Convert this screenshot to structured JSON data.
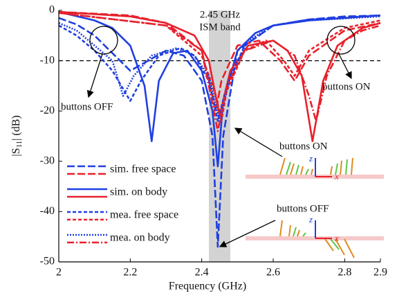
{
  "chart_data": {
    "type": "line",
    "xlabel": "Frequency (GHz)",
    "ylabel": {
      "pre": "|S",
      "sub": "11",
      "post": "| (dB)"
    },
    "xlim": [
      2,
      2.9
    ],
    "ylim": [
      -50,
      0
    ],
    "xticks": [
      2,
      2.2,
      2.4,
      2.6,
      2.8,
      2.9
    ],
    "yticks": [
      -50,
      -40,
      -30,
      -20,
      -10,
      0
    ],
    "hline": -10,
    "band": [
      2.42,
      2.48
    ],
    "annotations": [
      "2.45 GHz",
      "ISM band",
      "buttons OFF",
      "buttons ON",
      "buttons ON",
      "buttons OFF",
      "z",
      "x",
      "z",
      "x"
    ],
    "series": [
      {
        "name": "sim. free space",
        "color": "#1f3fe0",
        "dash": "11 4",
        "x": [
          2,
          2.05,
          2.1,
          2.15,
          2.2,
          2.25,
          2.3,
          2.35,
          2.4,
          2.43,
          2.445,
          2.46,
          2.5,
          2.6,
          2.7,
          2.8,
          2.9
        ],
        "values": [
          -1.5,
          -2.8,
          -5,
          -8.5,
          -12,
          -10,
          -8,
          -9,
          -14,
          -25,
          -47,
          -25,
          -8,
          -3,
          -1.8,
          -1.2,
          -1
        ]
      },
      {
        "color": "#e8202a",
        "dash": "11 4",
        "x": [
          2,
          2.2,
          2.3,
          2.4,
          2.44,
          2.455,
          2.5,
          2.56,
          2.62,
          2.66,
          2.7,
          2.8,
          2.9
        ],
        "values": [
          -0.3,
          -1,
          -2.5,
          -8,
          -20,
          -14,
          -7,
          -6,
          -10,
          -14,
          -9,
          -4,
          -2.5
        ]
      },
      {
        "name": "sim. on body",
        "color": "#1f3fe0",
        "dash": "none",
        "x": [
          2,
          2.1,
          2.15,
          2.2,
          2.24,
          2.26,
          2.28,
          2.32,
          2.36,
          2.4,
          2.43,
          2.445,
          2.46,
          2.5,
          2.55,
          2.6,
          2.7,
          2.8,
          2.9
        ],
        "values": [
          -0.3,
          -2,
          -3.5,
          -7,
          -15,
          -26,
          -14,
          -8.5,
          -8,
          -12,
          -20,
          -31,
          -18,
          -8,
          -4.5,
          -3,
          -2,
          -1.5,
          -1
        ]
      },
      {
        "color": "#e8202a",
        "dash": "none",
        "x": [
          2,
          2.2,
          2.3,
          2.38,
          2.42,
          2.45,
          2.48,
          2.53,
          2.6,
          2.64,
          2.68,
          2.71,
          2.74,
          2.78,
          2.85,
          2.9
        ],
        "values": [
          -0.3,
          -1.2,
          -2.5,
          -5,
          -10,
          -21,
          -12,
          -7,
          -6,
          -8,
          -13,
          -26,
          -14,
          -7,
          -3.5,
          -2.5
        ]
      },
      {
        "name": "mea. free space",
        "color": "#1f3fe0",
        "dash": "5 3",
        "x": [
          2,
          2.05,
          2.1,
          2.15,
          2.2,
          2.23,
          2.28,
          2.34,
          2.38,
          2.42,
          2.445,
          2.47,
          2.52,
          2.6,
          2.7,
          2.9
        ],
        "values": [
          -3,
          -5,
          -8,
          -12,
          -18,
          -14,
          -9,
          -7.5,
          -9,
          -14,
          -22,
          -15,
          -7,
          -3,
          -1.8,
          -1
        ]
      },
      {
        "color": "#e8202a",
        "dash": "5 3",
        "x": [
          2,
          2.3,
          2.4,
          2.44,
          2.455,
          2.47,
          2.52,
          2.58,
          2.63,
          2.66,
          2.7,
          2.8,
          2.9
        ],
        "values": [
          -0.5,
          -3,
          -9,
          -17,
          -22,
          -16,
          -8,
          -6,
          -10,
          -13,
          -8,
          -3.5,
          -2
        ]
      },
      {
        "name": "mea. on body",
        "color": "#1f3fe0",
        "dash": "2 2",
        "x": [
          2,
          2.05,
          2.1,
          2.15,
          2.18,
          2.21,
          2.26,
          2.33,
          2.38,
          2.42,
          2.45,
          2.48,
          2.53,
          2.6,
          2.7,
          2.9
        ],
        "values": [
          -2.5,
          -4,
          -7,
          -10,
          -17,
          -13,
          -9,
          -7.5,
          -9,
          -13,
          -22,
          -13,
          -6,
          -3,
          -2,
          -1.2
        ]
      },
      {
        "color": "#e8202a",
        "dash": "10 3 2 3",
        "x": [
          2,
          2.3,
          2.4,
          2.445,
          2.47,
          2.52,
          2.6,
          2.66,
          2.7,
          2.72,
          2.75,
          2.8,
          2.85,
          2.9
        ],
        "values": [
          -0.5,
          -3,
          -8,
          -24,
          -15,
          -8,
          -6,
          -9,
          -17,
          -22,
          -13,
          -6,
          -4,
          -3
        ]
      }
    ]
  }
}
